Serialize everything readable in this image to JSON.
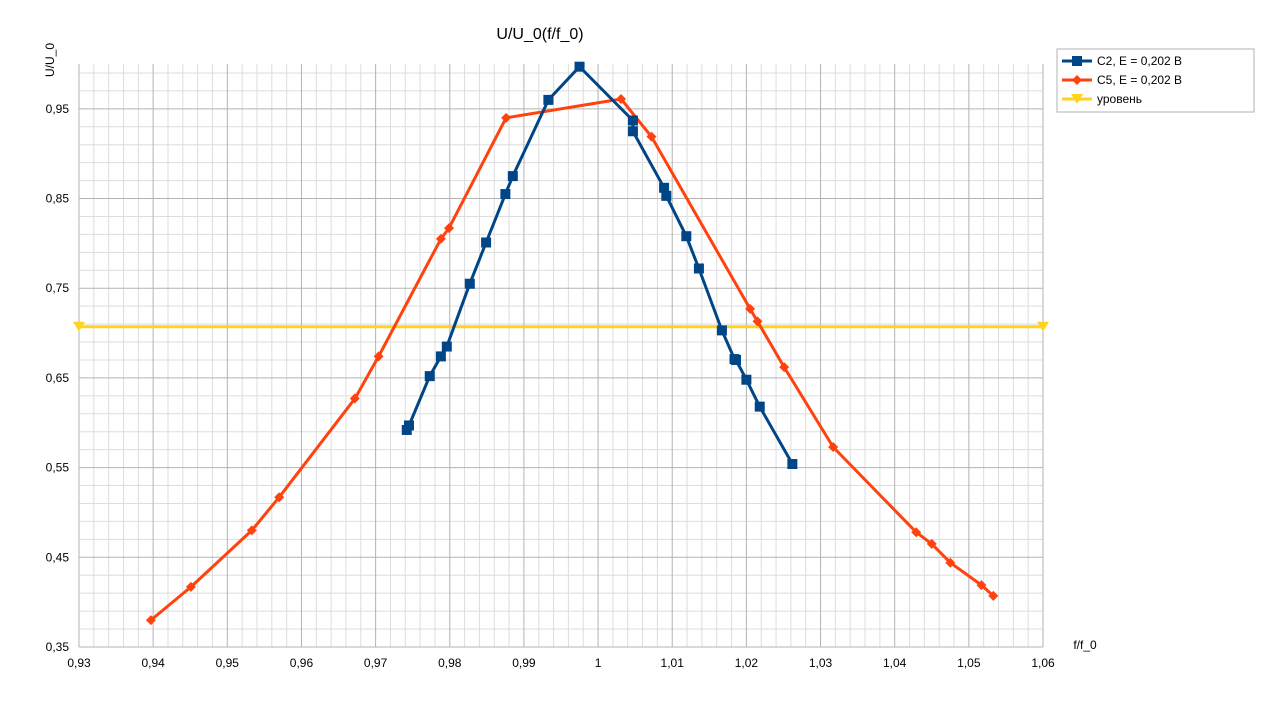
{
  "chart_data": {
    "type": "line",
    "title": "U/U_0(f/f_0)",
    "xlabel": "f/f_0",
    "ylabel": "U/U_0",
    "xlim": [
      0.93,
      1.06
    ],
    "ylim": [
      0.35,
      1.0
    ],
    "x_ticks": [
      0.93,
      0.94,
      0.95,
      0.96,
      0.97,
      0.98,
      0.99,
      1.0,
      1.01,
      1.02,
      1.03,
      1.04,
      1.05,
      1.06
    ],
    "x_tick_labels": [
      "0,93",
      "0,94",
      "0,95",
      "0,96",
      "0,97",
      "0,98",
      "0,99",
      "1",
      "1,01",
      "1,02",
      "1,03",
      "1,04",
      "1,05",
      "1,06"
    ],
    "y_ticks": [
      0.35,
      0.45,
      0.55,
      0.65,
      0.75,
      0.85,
      0.95
    ],
    "y_tick_labels": [
      "0,35",
      "0,45",
      "0,55",
      "0,65",
      "0,75",
      "0,85",
      "0,95"
    ],
    "grid": true,
    "legend_position": "top-right",
    "series": [
      {
        "name": "C2, E = 0,202 В",
        "color": "#004586",
        "marker": "square",
        "x": [
          0.9742,
          0.9745,
          0.9773,
          0.9788,
          0.9796,
          0.9827,
          0.9849,
          0.9875,
          0.9885,
          0.9933,
          0.9975,
          1.0047,
          1.0047,
          1.0089,
          1.0092,
          1.0119,
          1.0136,
          1.0167,
          1.0184,
          1.0186,
          1.02,
          1.0218,
          1.0262
        ],
        "y": [
          0.592,
          0.597,
          0.652,
          0.674,
          0.685,
          0.755,
          0.801,
          0.855,
          0.875,
          0.96,
          0.997,
          0.937,
          0.925,
          0.862,
          0.853,
          0.808,
          0.772,
          0.703,
          0.671,
          0.67,
          0.648,
          0.618,
          0.554
        ]
      },
      {
        "name": "C5, E = 0,202 В",
        "color": "#ff420e",
        "marker": "diamond",
        "x": [
          0.9397,
          0.9451,
          0.9533,
          0.957,
          0.9672,
          0.9704,
          0.9788,
          0.9799,
          0.9876,
          1.0031,
          1.0072,
          1.0205,
          1.0215,
          1.0251,
          1.0317,
          1.0429,
          1.045,
          1.0475,
          1.0517,
          1.0533
        ],
        "y": [
          0.38,
          0.417,
          0.48,
          0.517,
          0.627,
          0.674,
          0.805,
          0.817,
          0.94,
          0.961,
          0.919,
          0.727,
          0.713,
          0.662,
          0.573,
          0.478,
          0.465,
          0.444,
          0.419,
          0.407
        ]
      },
      {
        "name": "уровень",
        "color": "#ffd320",
        "marker": "triangle-down",
        "x": [
          0.93,
          1.06
        ],
        "y": [
          0.707,
          0.707
        ]
      }
    ]
  }
}
